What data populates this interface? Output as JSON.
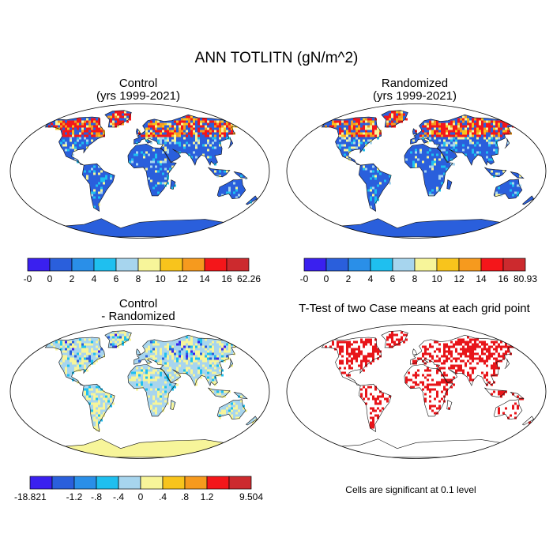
{
  "title": "ANN TOTLITN (gN/m^2)",
  "panels": [
    {
      "id": "control",
      "title_line1": "Control",
      "title_line2": "(yrs 1999-2021)",
      "kind": "field"
    },
    {
      "id": "randomized",
      "title_line1": "Randomized",
      "title_line2": "(yrs 1999-2021)",
      "kind": "field"
    },
    {
      "id": "diff",
      "title_line1": "Control",
      "title_line2": "- Randomized",
      "kind": "diff"
    },
    {
      "id": "ttest",
      "title_line1": "T-Test of two Case means at each grid point",
      "title_line2": "",
      "kind": "ttest"
    }
  ],
  "colorbars": {
    "control": {
      "colors": [
        "#3a20ef",
        "#2a5fdc",
        "#2a8fe8",
        "#1fbfef",
        "#a7d5ee",
        "#f7f59a",
        "#f8c41c",
        "#f69a1e",
        "#f4161a",
        "#cc2a2e"
      ],
      "labels": [
        "-0",
        "0",
        "2",
        "4",
        "6",
        "8",
        "10",
        "12",
        "14",
        "16",
        "62.26"
      ]
    },
    "randomized": {
      "colors": [
        "#3a20ef",
        "#2a5fdc",
        "#2a8fe8",
        "#1fbfef",
        "#a7d5ee",
        "#f7f59a",
        "#f8c41c",
        "#f69a1e",
        "#f4161a",
        "#cc2a2e"
      ],
      "labels": [
        "-0",
        "0",
        "2",
        "4",
        "6",
        "8",
        "10",
        "12",
        "14",
        "16",
        "80.93"
      ]
    },
    "diff": {
      "colors": [
        "#3a20ef",
        "#2a5fdc",
        "#2a8fe8",
        "#1fbfef",
        "#a7d5ee",
        "#f7f59a",
        "#f8c41c",
        "#f69a1e",
        "#f4161a",
        "#cc2a2e"
      ],
      "labels": [
        "-18.821",
        "",
        "-1.2",
        "-.8",
        "-.4",
        "0",
        ".4",
        ".8",
        "1.2",
        "",
        "9.504"
      ]
    }
  },
  "ttest_note": "Cells are significant at 0.1 level",
  "colors": {
    "ocean": "#ffffff",
    "land_low": "#2a5fdc",
    "land_mid": "#1fbfef",
    "land_high": "#f4161a",
    "diff_base": "#a7d5ee",
    "diff_pos": "#f7f59a",
    "signif": "#e8151a"
  }
}
